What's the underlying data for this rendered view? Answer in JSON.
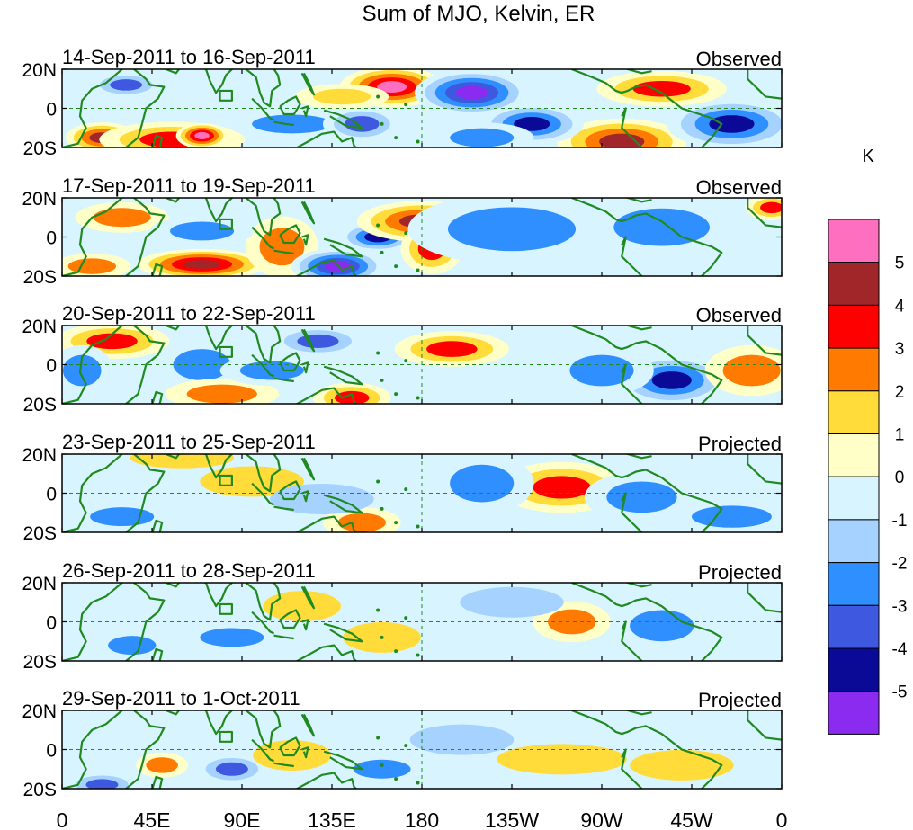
{
  "chart_data": {
    "type": "heatmap",
    "title": "Sum of MJO, Kelvin, ER",
    "units": "K",
    "x_ticks": [
      "0",
      "45E",
      "90E",
      "135E",
      "180",
      "135W",
      "90W",
      "45W",
      "0"
    ],
    "y_ticks": [
      "20N",
      "0",
      "20S"
    ],
    "xlim": [
      0,
      360
    ],
    "ylim": [
      -20,
      20
    ],
    "colorbar": {
      "labels": [
        "5",
        "4",
        "3",
        "2",
        "1",
        "0",
        "-1",
        "-2",
        "-3",
        "-4",
        "-5"
      ],
      "colors": [
        "#ff6fbf",
        "#a0262a",
        "#ff0000",
        "#ff7a00",
        "#ffdc3a",
        "#ffffc8",
        "#d8f4ff",
        "#a6d2ff",
        "#2f8fff",
        "#3f58e0",
        "#0a0a96",
        "#8b2bf0"
      ],
      "land_color": "#208a20"
    },
    "panels": [
      {
        "date_range": "14-Sep-2011 to 16-Sep-2011",
        "type": "Observed",
        "blobs": [
          {
            "lon": 20,
            "lat": -15,
            "value": 4.2,
            "w": 14,
            "h": 6
          },
          {
            "lon": 55,
            "lat": -16,
            "value": 3.5,
            "w": 28,
            "h": 7
          },
          {
            "lon": 70,
            "lat": -14,
            "value": 5.5,
            "w": 10,
            "h": 5
          },
          {
            "lon": 32,
            "lat": 12,
            "value": -3.2,
            "w": 14,
            "h": 5
          },
          {
            "lon": 165,
            "lat": 11,
            "value": 5.2,
            "w": 20,
            "h": 8
          },
          {
            "lon": 205,
            "lat": 8,
            "value": -5.5,
            "w": 22,
            "h": 9
          },
          {
            "lon": 280,
            "lat": -17,
            "value": 4.6,
            "w": 25,
            "h": 9
          },
          {
            "lon": 335,
            "lat": -8,
            "value": -4.2,
            "w": 25,
            "h": 10
          },
          {
            "lon": 300,
            "lat": 10,
            "value": 3.5,
            "w": 25,
            "h": 7
          },
          {
            "lon": 115,
            "lat": -8,
            "value": -2.5,
            "w": 25,
            "h": 6
          },
          {
            "lon": 150,
            "lat": -8,
            "value": -3.4,
            "w": 15,
            "h": 7
          },
          {
            "lon": 140,
            "lat": 6,
            "value": 2.0,
            "w": 18,
            "h": 5
          },
          {
            "lon": 235,
            "lat": -8,
            "value": -4.0,
            "w": 20,
            "h": 8
          },
          {
            "lon": 210,
            "lat": -15,
            "value": -2.5,
            "w": 20,
            "h": 6
          }
        ]
      },
      {
        "date_range": "17-Sep-2011 to 19-Sep-2011",
        "type": "Observed",
        "blobs": [
          {
            "lon": 70,
            "lat": -14,
            "value": 5.0,
            "w": 25,
            "h": 6
          },
          {
            "lon": 110,
            "lat": -5,
            "value": 2.8,
            "w": 14,
            "h": 12
          },
          {
            "lon": 138,
            "lat": -15,
            "value": -5.5,
            "w": 18,
            "h": 7
          },
          {
            "lon": 158,
            "lat": 0,
            "value": -4.4,
            "w": 15,
            "h": 6
          },
          {
            "lon": 180,
            "lat": 8,
            "value": 4.2,
            "w": 25,
            "h": 8
          },
          {
            "lon": 185,
            "lat": -6,
            "value": 3.2,
            "w": 12,
            "h": 10
          },
          {
            "lon": 225,
            "lat": 4,
            "value": -2.6,
            "w": 40,
            "h": 14
          },
          {
            "lon": 300,
            "lat": 5,
            "value": -2.2,
            "w": 30,
            "h": 12
          },
          {
            "lon": 30,
            "lat": 10,
            "value": 2.2,
            "w": 18,
            "h": 6
          },
          {
            "lon": 70,
            "lat": 3,
            "value": -2.3,
            "w": 20,
            "h": 6
          },
          {
            "lon": 355,
            "lat": 15,
            "value": 3.2,
            "w": 10,
            "h": 5
          },
          {
            "lon": 15,
            "lat": -15,
            "value": 2.5,
            "w": 15,
            "h": 5
          }
        ]
      },
      {
        "date_range": "20-Sep-2011 to 22-Sep-2011",
        "type": "Observed",
        "blobs": [
          {
            "lon": 25,
            "lat": 12,
            "value": 3.5,
            "w": 22,
            "h": 7
          },
          {
            "lon": 10,
            "lat": -3,
            "value": -2.2,
            "w": 12,
            "h": 10
          },
          {
            "lon": 70,
            "lat": 0,
            "value": -2.8,
            "w": 18,
            "h": 10
          },
          {
            "lon": 80,
            "lat": -15,
            "value": 2.6,
            "w": 22,
            "h": 6
          },
          {
            "lon": 128,
            "lat": 12,
            "value": -3.4,
            "w": 18,
            "h": 6
          },
          {
            "lon": 145,
            "lat": -17,
            "value": 3.3,
            "w": 15,
            "h": 6
          },
          {
            "lon": 195,
            "lat": 8,
            "value": 3.2,
            "w": 22,
            "h": 7
          },
          {
            "lon": 305,
            "lat": -8,
            "value": -4.6,
            "w": 22,
            "h": 10
          },
          {
            "lon": 270,
            "lat": -3,
            "value": -2.2,
            "w": 20,
            "h": 10
          },
          {
            "lon": 345,
            "lat": -3,
            "value": 2.2,
            "w": 18,
            "h": 10
          },
          {
            "lon": 105,
            "lat": -3,
            "value": -2.2,
            "w": 20,
            "h": 6
          }
        ]
      },
      {
        "date_range": "23-Sep-2011 to 25-Sep-2011",
        "type": "Projected",
        "blobs": [
          {
            "lon": 250,
            "lat": 3,
            "value": 3.2,
            "w": 25,
            "h": 10
          },
          {
            "lon": 210,
            "lat": 5,
            "value": -2.4,
            "w": 20,
            "h": 12
          },
          {
            "lon": 150,
            "lat": -15,
            "value": 2.5,
            "w": 15,
            "h": 6
          },
          {
            "lon": 30,
            "lat": -12,
            "value": -2.5,
            "w": 20,
            "h": 6
          },
          {
            "lon": 290,
            "lat": -2,
            "value": -2.4,
            "w": 22,
            "h": 10
          },
          {
            "lon": 335,
            "lat": -12,
            "value": -2.0,
            "w": 25,
            "h": 7
          },
          {
            "lon": 95,
            "lat": 6,
            "value": 1.8,
            "w": 20,
            "h": 6
          },
          {
            "lon": 60,
            "lat": 18,
            "value": 1.8,
            "w": 20,
            "h": 4
          },
          {
            "lon": 130,
            "lat": -3,
            "value": -1.8,
            "w": 20,
            "h": 6
          }
        ]
      },
      {
        "date_range": "26-Sep-2011 to 28-Sep-2011",
        "type": "Projected",
        "blobs": [
          {
            "lon": 85,
            "lat": -8,
            "value": -2.5,
            "w": 20,
            "h": 6
          },
          {
            "lon": 35,
            "lat": -12,
            "value": -2.0,
            "w": 15,
            "h": 6
          },
          {
            "lon": 255,
            "lat": 0,
            "value": 2.3,
            "w": 15,
            "h": 8
          },
          {
            "lon": 225,
            "lat": 10,
            "value": -1.8,
            "w": 20,
            "h": 6
          },
          {
            "lon": 300,
            "lat": -2,
            "value": -2.0,
            "w": 20,
            "h": 10
          },
          {
            "lon": 160,
            "lat": -8,
            "value": 1.5,
            "w": 15,
            "h": 6
          },
          {
            "lon": 120,
            "lat": 8,
            "value": 1.4,
            "w": 15,
            "h": 6
          }
        ]
      },
      {
        "date_range": "29-Sep-2011 to 1-Oct-2011",
        "type": "Projected",
        "blobs": [
          {
            "lon": 20,
            "lat": -18,
            "value": -3.3,
            "w": 14,
            "h": 5
          },
          {
            "lon": 50,
            "lat": -8,
            "value": 2.5,
            "w": 10,
            "h": 5
          },
          {
            "lon": 85,
            "lat": -10,
            "value": -3.0,
            "w": 14,
            "h": 6
          },
          {
            "lon": 160,
            "lat": -10,
            "value": -2.5,
            "w": 18,
            "h": 6
          },
          {
            "lon": 250,
            "lat": -5,
            "value": 1.8,
            "w": 25,
            "h": 6
          },
          {
            "lon": 310,
            "lat": -8,
            "value": 1.6,
            "w": 20,
            "h": 6
          },
          {
            "lon": 200,
            "lat": 5,
            "value": -1.5,
            "w": 20,
            "h": 6
          },
          {
            "lon": 115,
            "lat": -3,
            "value": 1.4,
            "w": 15,
            "h": 6
          }
        ]
      }
    ]
  }
}
